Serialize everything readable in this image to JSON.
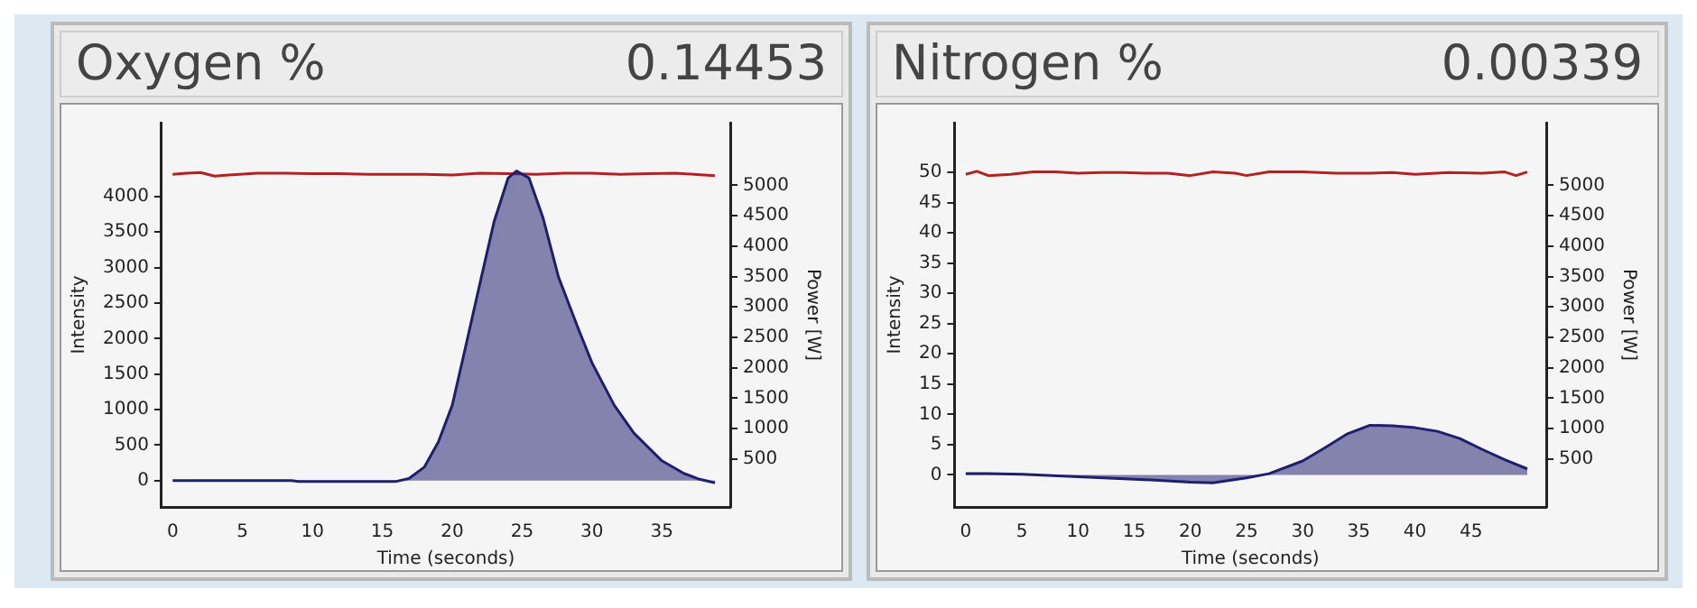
{
  "chart_data": [
    {
      "type": "area",
      "title": "Oxygen %",
      "subtitle": "0.14453",
      "xlabel": "Time (seconds)",
      "ylabel": "Intensity",
      "y2label": "Power [W]",
      "xlim": [
        -0.8,
        39.9
      ],
      "xticks": [
        0,
        5,
        10,
        15,
        20,
        25,
        30,
        35
      ],
      "ylim": [
        -370,
        5040
      ],
      "yticks": [
        0,
        500,
        1000,
        1500,
        2000,
        2500,
        3000,
        3500,
        4000
      ],
      "y2lim": [
        -290,
        6030
      ],
      "y2ticks": [
        500,
        1000,
        1500,
        2000,
        2500,
        3000,
        3500,
        4000,
        4500,
        5000
      ],
      "grid": false,
      "legend": false,
      "series": [
        {
          "axis": "y",
          "color": "#1f1f6e",
          "x": [
            0,
            4,
            8.5,
            9,
            12,
            16,
            16.9,
            18,
            19,
            20,
            21,
            22,
            23,
            24,
            24.6,
            25.5,
            26.5,
            27.6,
            29,
            30,
            31.6,
            33,
            35,
            36.6,
            37.7,
            38.8
          ],
          "values": [
            0,
            0,
            0,
            -10,
            -10,
            -10,
            30,
            190,
            540,
            1060,
            1920,
            2790,
            3650,
            4260,
            4360,
            4260,
            3700,
            2870,
            2150,
            1660,
            1060,
            670,
            280,
            100,
            20,
            -30
          ]
        },
        {
          "type": "line",
          "axis": "y2",
          "color": "#b22222",
          "x": [
            0,
            1,
            2,
            3,
            4,
            6,
            8,
            10,
            12,
            14,
            16,
            18,
            20,
            22,
            24,
            26,
            28,
            30,
            32,
            34,
            36,
            38,
            38.8
          ],
          "values": [
            5180,
            5200,
            5210,
            5150,
            5170,
            5200,
            5200,
            5190,
            5190,
            5180,
            5180,
            5180,
            5170,
            5200,
            5190,
            5180,
            5200,
            5200,
            5180,
            5190,
            5200,
            5170,
            5160
          ]
        }
      ]
    },
    {
      "type": "area",
      "title": "Nitrogen %",
      "subtitle": "0.00339",
      "xlabel": "Time (seconds)",
      "ylabel": "Intensity",
      "y2label": "Power [W]",
      "xlim": [
        -1,
        51.7
      ],
      "xticks": [
        0,
        5,
        10,
        15,
        20,
        25,
        30,
        35,
        40,
        45
      ],
      "ylim": [
        -5.3,
        58.2
      ],
      "yticks": [
        0,
        5,
        10,
        15,
        20,
        25,
        30,
        35,
        40,
        45,
        50
      ],
      "y2lim": [
        -290,
        6030
      ],
      "y2ticks": [
        500,
        1000,
        1500,
        2000,
        2500,
        3000,
        3500,
        4000,
        4500,
        5000
      ],
      "grid": false,
      "legend": false,
      "series": [
        {
          "axis": "y",
          "color": "#1f1f6e",
          "x": [
            0,
            2,
            5,
            10,
            15,
            20,
            22,
            25,
            27,
            30,
            32,
            34,
            36,
            38,
            40,
            42,
            44,
            46,
            48,
            50
          ],
          "values": [
            0.2,
            0.2,
            0.1,
            -0.3,
            -0.7,
            -1.2,
            -1.3,
            -0.5,
            0.2,
            2.3,
            4.5,
            6.8,
            8.2,
            8.1,
            7.8,
            7.2,
            6,
            4.2,
            2.5,
            1
          ]
        },
        {
          "type": "line",
          "axis": "y2",
          "color": "#b22222",
          "x": [
            0,
            1,
            2,
            4,
            6,
            8,
            10,
            12,
            14,
            16,
            18,
            20,
            22,
            24,
            25,
            27,
            30,
            33,
            36,
            38,
            40,
            43,
            46,
            48,
            49,
            50
          ],
          "values": [
            5180,
            5230,
            5160,
            5180,
            5220,
            5220,
            5200,
            5210,
            5210,
            5200,
            5200,
            5160,
            5220,
            5200,
            5160,
            5220,
            5220,
            5200,
            5200,
            5210,
            5180,
            5210,
            5200,
            5220,
            5160,
            5220
          ]
        }
      ]
    }
  ]
}
